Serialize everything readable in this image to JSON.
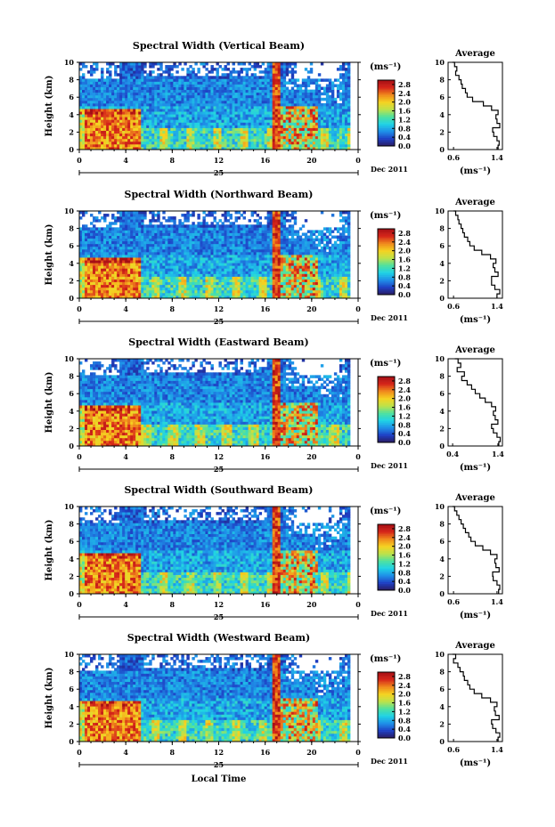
{
  "chart_data": {
    "type": "heatmap",
    "x_title": "Local Time",
    "date_label": "Dec 2011",
    "day_label": "25",
    "x_ticks": [
      "0",
      "4",
      "8",
      "12",
      "16",
      "20",
      "0"
    ],
    "x_range": [
      0,
      24
    ],
    "y_label": "Height (km)",
    "y_ticks": [
      "0",
      "2",
      "4",
      "6",
      "8",
      "10"
    ],
    "y_range": [
      0,
      10
    ],
    "colorbar_unit": "(ms⁻¹)",
    "colorbar_ticks": [
      "0.0",
      "0.4",
      "0.8",
      "1.2",
      "1.6",
      "2.0",
      "2.4",
      "2.8"
    ],
    "colorbar_range": [
      0,
      3.0
    ],
    "profile_title": "Average",
    "profile_unit": "(ms⁻¹)",
    "profile_y_ticks": [
      "0",
      "2",
      "4",
      "6",
      "8",
      "10"
    ],
    "colors": {
      "scale": [
        "#2a1a5e",
        "#1e3fc4",
        "#1f8fe8",
        "#1fd2e6",
        "#4fe1a0",
        "#bde24a",
        "#f5d321",
        "#f08a1c",
        "#d6261a",
        "#a50f15"
      ]
    },
    "panels": [
      {
        "title": "Spectral Width (Vertical Beam)",
        "profile_x_ticks": [
          "0.6",
          "1.4"
        ],
        "profile_xlim": [
          0.5,
          1.5
        ],
        "profile": {
          "x": [
            0.58,
            0.62,
            0.66,
            0.64,
            0.7,
            0.74,
            0.76,
            0.82,
            0.85,
            0.95,
            1.15,
            1.3,
            1.42,
            1.38,
            1.4,
            1.45,
            1.32,
            1.34,
            1.4,
            1.44,
            1.42
          ],
          "y": [
            10,
            9.5,
            9.0,
            8.5,
            8.0,
            7.5,
            7.0,
            6.5,
            6.0,
            5.5,
            5.0,
            4.5,
            4.0,
            3.5,
            3.0,
            2.5,
            2.0,
            1.5,
            1.0,
            0.5,
            0
          ]
        }
      },
      {
        "title": "Spectral Width (Northward Beam)",
        "profile_x_ticks": [
          "0.6",
          "1.4"
        ],
        "profile_xlim": [
          0.5,
          1.5
        ],
        "profile": {
          "x": [
            0.6,
            0.64,
            0.68,
            0.7,
            0.74,
            0.77,
            0.8,
            0.86,
            0.9,
            0.98,
            1.12,
            1.28,
            1.38,
            1.33,
            1.36,
            1.42,
            1.3,
            1.3,
            1.36,
            1.45,
            1.4
          ],
          "y": [
            10,
            9.5,
            9.0,
            8.5,
            8.0,
            7.5,
            7.0,
            6.5,
            6.0,
            5.5,
            5.0,
            4.5,
            4.0,
            3.5,
            3.0,
            2.5,
            2.0,
            1.5,
            1.0,
            0.5,
            0
          ]
        }
      },
      {
        "title": "Spectral Width (Eastward Beam)",
        "profile_x_ticks": [
          "0.4",
          "1.4"
        ],
        "profile_xlim": [
          0.3,
          1.5
        ],
        "profile": {
          "x": [
            0.45,
            0.52,
            0.58,
            0.5,
            0.66,
            0.6,
            0.72,
            0.82,
            0.9,
            1.0,
            1.12,
            1.26,
            1.35,
            1.3,
            1.34,
            1.4,
            1.26,
            1.3,
            1.38,
            1.45,
            1.42
          ],
          "y": [
            10,
            9.5,
            9.0,
            8.5,
            8.0,
            7.5,
            7.0,
            6.5,
            6.0,
            5.5,
            5.0,
            4.5,
            4.0,
            3.5,
            3.0,
            2.5,
            2.0,
            1.5,
            1.0,
            0.5,
            0
          ]
        }
      },
      {
        "title": "Spectral Width (Southward Beam)",
        "profile_x_ticks": [
          "0.6",
          "1.4"
        ],
        "profile_xlim": [
          0.5,
          1.5
        ],
        "profile": {
          "x": [
            0.58,
            0.62,
            0.66,
            0.7,
            0.74,
            0.78,
            0.82,
            0.88,
            0.92,
            1.0,
            1.14,
            1.28,
            1.4,
            1.36,
            1.38,
            1.44,
            1.32,
            1.33,
            1.4,
            1.45,
            1.43
          ],
          "y": [
            10,
            9.5,
            9.0,
            8.5,
            8.0,
            7.5,
            7.0,
            6.5,
            6.0,
            5.5,
            5.0,
            4.5,
            4.0,
            3.5,
            3.0,
            2.5,
            2.0,
            1.5,
            1.0,
            0.5,
            0
          ]
        }
      },
      {
        "title": "Spectral Width (Westward Beam)",
        "profile_x_ticks": [
          "0.6",
          "1.4"
        ],
        "profile_xlim": [
          0.5,
          1.5
        ],
        "profile": {
          "x": [
            0.58,
            0.64,
            0.6,
            0.68,
            0.72,
            0.78,
            0.8,
            0.86,
            0.9,
            0.98,
            1.12,
            1.28,
            1.4,
            1.35,
            1.37,
            1.44,
            1.3,
            1.32,
            1.38,
            1.45,
            1.42
          ],
          "y": [
            10,
            9.5,
            9.0,
            8.5,
            8.0,
            7.5,
            7.0,
            6.5,
            6.0,
            5.5,
            5.0,
            4.5,
            4.0,
            3.5,
            3.0,
            2.5,
            2.0,
            1.5,
            1.0,
            0.5,
            0
          ]
        }
      }
    ]
  }
}
